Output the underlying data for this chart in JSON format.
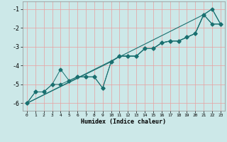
{
  "xlabel": "Humidex (Indice chaleur)",
  "bg_color": "#cce8e8",
  "grid_color": "#e8a0a0",
  "line_color": "#1a7070",
  "xlim": [
    -0.5,
    23.5
  ],
  "ylim": [
    -6.4,
    -0.6
  ],
  "xticks": [
    0,
    1,
    2,
    3,
    4,
    5,
    6,
    7,
    8,
    9,
    10,
    11,
    12,
    13,
    14,
    15,
    16,
    17,
    18,
    19,
    20,
    21,
    22,
    23
  ],
  "yticks": [
    -6,
    -5,
    -4,
    -3,
    -2,
    -1
  ],
  "line1_x": [
    0,
    1,
    2,
    3,
    4,
    5,
    6,
    7,
    8,
    9,
    10,
    11,
    12,
    13,
    14,
    15,
    16,
    17,
    18,
    19,
    20,
    21,
    22,
    23
  ],
  "line1_y": [
    -6.0,
    -5.4,
    -5.4,
    -5.0,
    -4.2,
    -4.8,
    -4.6,
    -4.6,
    -4.6,
    -5.2,
    -3.8,
    -3.5,
    -3.5,
    -3.5,
    -3.1,
    -3.1,
    -2.8,
    -2.7,
    -2.7,
    -2.5,
    -2.3,
    -1.3,
    -1.0,
    -1.8
  ],
  "line2_x": [
    0,
    1,
    2,
    3,
    4,
    5,
    6,
    7,
    8,
    9,
    10,
    11,
    12,
    13,
    14,
    15,
    16,
    17,
    18,
    19,
    20,
    21,
    22,
    23
  ],
  "line2_y": [
    -6.0,
    -5.4,
    -5.4,
    -5.0,
    -5.0,
    -4.8,
    -4.6,
    -4.6,
    -4.6,
    -5.2,
    -3.8,
    -3.5,
    -3.5,
    -3.5,
    -3.1,
    -3.1,
    -2.8,
    -2.7,
    -2.7,
    -2.5,
    -2.3,
    -1.3,
    -1.8,
    -1.8
  ],
  "line3_x": [
    0,
    21,
    22,
    23
  ],
  "line3_y": [
    -6.0,
    -1.3,
    -1.0,
    -1.8
  ],
  "line4_x": [
    0,
    10,
    11,
    12,
    13,
    14,
    15,
    16,
    17,
    18,
    19,
    20,
    21,
    22,
    23
  ],
  "line4_y": [
    -6.0,
    -3.8,
    -3.5,
    -3.5,
    -3.5,
    -3.1,
    -3.1,
    -2.8,
    -2.7,
    -2.7,
    -2.5,
    -2.3,
    -1.3,
    -1.8,
    -1.8
  ]
}
